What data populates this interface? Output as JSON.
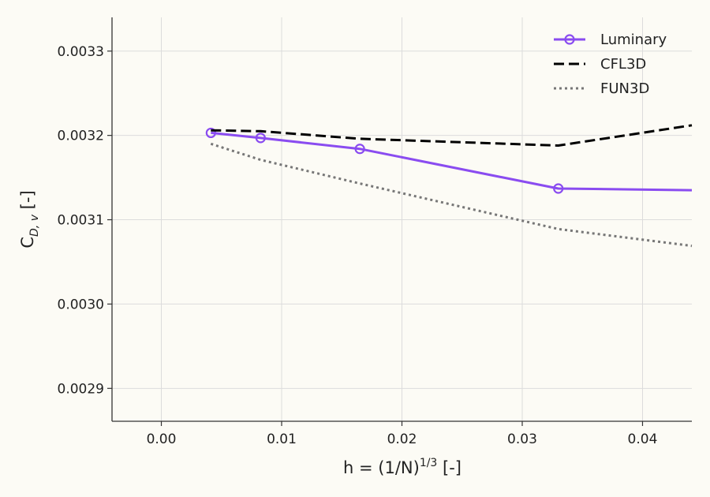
{
  "chart_data": {
    "type": "line",
    "title": "",
    "xlabel": "h = (1/N)",
    "xlabel_sup": "1/3",
    "xlabel_suffix": " [-]",
    "ylabel": "C",
    "ylabel_sub": "D, v",
    "ylabel_suffix": " [-]",
    "xlim": [
      -0.0041,
      0.0441
    ],
    "ylim": [
      0.002861,
      0.00334
    ],
    "xticks": [
      0.0,
      0.01,
      0.02,
      0.03,
      0.04
    ],
    "xtick_labels": [
      "0.00",
      "0.01",
      "0.02",
      "0.03",
      "0.04"
    ],
    "yticks": [
      0.0029,
      0.003,
      0.0031,
      0.0032,
      0.0033
    ],
    "ytick_labels": [
      "0.0029",
      "0.0030",
      "0.0031",
      "0.0032",
      "0.0033"
    ],
    "grid": true,
    "legend_position": "top-right",
    "series": [
      {
        "name": "Luminary",
        "style": "solid-marker",
        "color": "#8a4cf0",
        "x": [
          0.00412,
          0.00825,
          0.0165,
          0.033,
          0.0441
        ],
        "y": [
          0.003203,
          0.003197,
          0.003184,
          0.003137,
          0.003135
        ],
        "markers": [
          true,
          true,
          true,
          true,
          false
        ]
      },
      {
        "name": "CFL3D",
        "style": "dashed",
        "color": "#000000",
        "x": [
          0.00412,
          0.00825,
          0.0165,
          0.033,
          0.0441
        ],
        "y": [
          0.003206,
          0.003205,
          0.003196,
          0.003188,
          0.003212
        ]
      },
      {
        "name": "FUN3D",
        "style": "dotted",
        "color": "#777777",
        "x": [
          0.00412,
          0.00825,
          0.0165,
          0.033,
          0.0441
        ],
        "y": [
          0.00319,
          0.003171,
          0.003143,
          0.003089,
          0.003069
        ]
      }
    ]
  }
}
